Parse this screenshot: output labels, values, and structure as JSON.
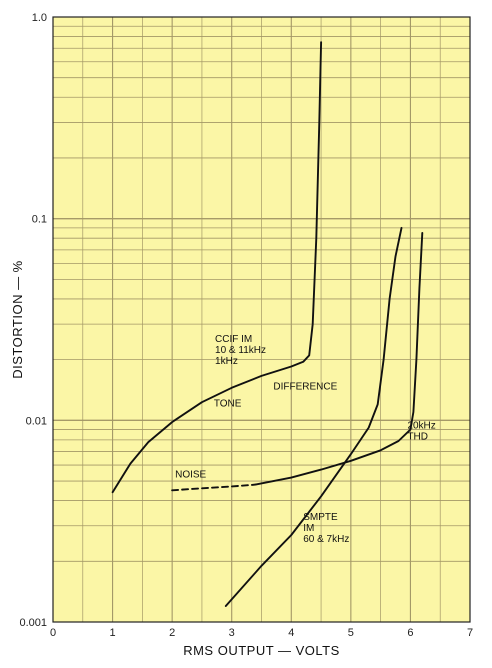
{
  "chart_data": {
    "type": "line",
    "xlabel": "RMS OUTPUT — VOLTS",
    "ylabel": "DISTORTION — %",
    "xlim": [
      0,
      7
    ],
    "ylim": [
      0.001,
      1.0
    ],
    "yscale": "log",
    "grid": true,
    "background_color": "#fbf6a6",
    "grid_color": "#a39766",
    "line_color": "#111111",
    "x_ticks": [
      "0",
      "1",
      "2",
      "3",
      "4",
      "5",
      "6",
      "7"
    ],
    "y_ticks": [
      "0.001",
      "0.01",
      "0.1",
      "1.0"
    ],
    "series": [
      {
        "name": "CCIF IM 10 & 11kHz 1kHz DIFFERENCE TONE",
        "style": "solid",
        "points": [
          [
            1.0,
            0.0044
          ],
          [
            1.3,
            0.0061
          ],
          [
            1.6,
            0.0078
          ],
          [
            2.0,
            0.0098
          ],
          [
            2.5,
            0.0123
          ],
          [
            3.0,
            0.0145
          ],
          [
            3.5,
            0.0166
          ],
          [
            4.0,
            0.0185
          ],
          [
            4.2,
            0.0195
          ],
          [
            4.3,
            0.021
          ],
          [
            4.36,
            0.03
          ],
          [
            4.42,
            0.08
          ],
          [
            4.47,
            0.3
          ],
          [
            4.5,
            0.75
          ]
        ]
      },
      {
        "name": "NOISE",
        "style": "dashed",
        "points": [
          [
            2.0,
            0.0045
          ],
          [
            2.5,
            0.0046
          ],
          [
            3.0,
            0.0047
          ],
          [
            3.4,
            0.0048
          ]
        ]
      },
      {
        "name": "20kHz THD",
        "style": "solid",
        "points": [
          [
            3.4,
            0.0048
          ],
          [
            4.0,
            0.0052
          ],
          [
            4.5,
            0.0057
          ],
          [
            5.0,
            0.0063
          ],
          [
            5.5,
            0.0071
          ],
          [
            5.8,
            0.0079
          ],
          [
            6.0,
            0.009
          ],
          [
            6.05,
            0.011
          ],
          [
            6.1,
            0.02
          ],
          [
            6.15,
            0.045
          ],
          [
            6.2,
            0.085
          ]
        ]
      },
      {
        "name": "SMPTE IM 60 & 7kHz",
        "style": "solid",
        "points": [
          [
            2.9,
            0.0012
          ],
          [
            3.5,
            0.0019
          ],
          [
            4.0,
            0.0027
          ],
          [
            4.5,
            0.0042
          ],
          [
            5.0,
            0.0068
          ],
          [
            5.3,
            0.0092
          ],
          [
            5.45,
            0.012
          ],
          [
            5.55,
            0.02
          ],
          [
            5.65,
            0.04
          ],
          [
            5.75,
            0.065
          ],
          [
            5.85,
            0.09
          ]
        ]
      }
    ],
    "annotations": [
      {
        "lines": [
          "CCIF IM",
          "10 & 11kHz",
          "1kHz"
        ]
      },
      {
        "lines": [
          "DIFFERENCE"
        ]
      },
      {
        "lines": [
          "TONE"
        ]
      },
      {
        "lines": [
          "NOISE"
        ]
      },
      {
        "lines": [
          "20kHz",
          "THD"
        ]
      },
      {
        "lines": [
          "SMPTE",
          "IM",
          "60 & 7kHz"
        ]
      }
    ]
  }
}
